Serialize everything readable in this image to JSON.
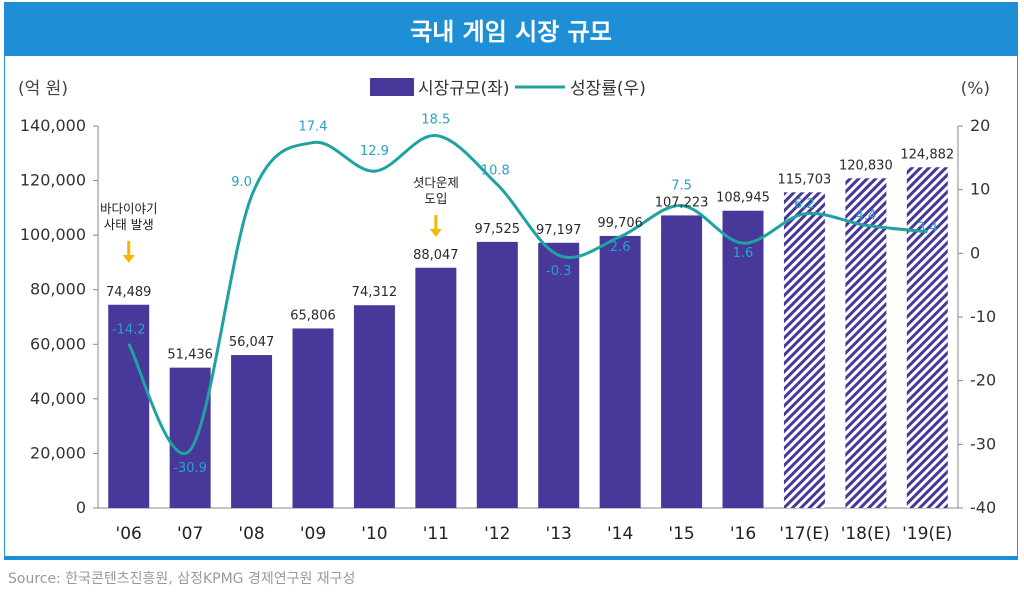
{
  "title": "국내 게임 시장 규모",
  "source": "Source: 한국콘텐츠진흥원, 삼정KPMG 경제연구원 재구성",
  "colors": {
    "bar": "#48389a",
    "line": "#1fa3a0",
    "hatch": "#48389a",
    "growth_label": "#2aa0c8",
    "arrow": "#f5b700",
    "title_bg": "#1e8fd6"
  },
  "chart_data": {
    "type": "bar+line",
    "title": "국내 게임 시장 규모",
    "left_unit": "(억 원)",
    "right_unit": "(%)",
    "categories": [
      "'06",
      "'07",
      "'08",
      "'09",
      "'10",
      "'11",
      "'12",
      "'13",
      "'14",
      "'15",
      "'16",
      "'17(E)",
      "'18(E)",
      "'19(E)"
    ],
    "series": [
      {
        "name": "시장규모(좌)",
        "kind": "bar",
        "axis": "left",
        "values": [
          74489,
          51436,
          56047,
          65806,
          74312,
          88047,
          97525,
          97197,
          99706,
          107223,
          108945,
          115703,
          120830,
          124882
        ],
        "labels": [
          "74,489",
          "51,436",
          "56,047",
          "65,806",
          "74,312",
          "88,047",
          "97,525",
          "97,197",
          "99,706",
          "107,223",
          "108,945",
          "115,703",
          "120,830",
          "124,882"
        ],
        "estimated": [
          false,
          false,
          false,
          false,
          false,
          false,
          false,
          false,
          false,
          false,
          false,
          true,
          true,
          true
        ]
      },
      {
        "name": "성장률(우)",
        "kind": "line",
        "axis": "right",
        "values": [
          -14.2,
          -30.9,
          9.0,
          17.4,
          12.9,
          18.5,
          10.8,
          -0.3,
          2.6,
          7.5,
          1.6,
          6.2,
          4.4,
          3.4
        ],
        "labels": [
          "-14.2",
          "-30.9",
          "9.0",
          "17.4",
          "12.9",
          "18.5",
          "10.8",
          "-0.3",
          "2.6",
          "7.5",
          "1.6",
          "6.2",
          "4.4",
          "3.4"
        ]
      }
    ],
    "left_axis": {
      "min": 0,
      "max": 140000,
      "ticks": [
        0,
        20000,
        40000,
        60000,
        80000,
        100000,
        120000,
        140000
      ],
      "tick_labels": [
        "0",
        "20,000",
        "40,000",
        "60,000",
        "80,000",
        "100,000",
        "120,000",
        "140,000"
      ]
    },
    "right_axis": {
      "min": -40,
      "max": 20,
      "ticks": [
        -40,
        -30,
        -20,
        -10,
        0,
        10,
        20
      ],
      "tick_labels": [
        "-40",
        "-30",
        "-20",
        "-10",
        "0",
        "10",
        "20"
      ]
    },
    "annotations": [
      {
        "category_index": 0,
        "lines": [
          "바다이야기",
          "사태 발생"
        ]
      },
      {
        "category_index": 5,
        "lines": [
          "셧다운제",
          "도입"
        ]
      }
    ],
    "legend_position": "top-center",
    "grid": false
  }
}
